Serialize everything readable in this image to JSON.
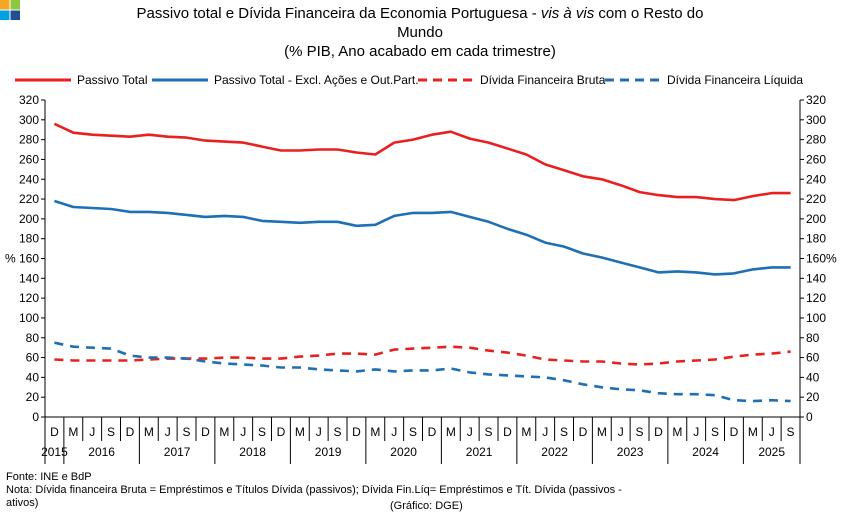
{
  "logo": {
    "colors": [
      "#f5a623",
      "#8dc63f",
      "#00a0e3",
      "#1d4f91"
    ]
  },
  "chart_data": {
    "type": "line",
    "title_line1_a": "Passivo total e Dívida Financeira da Economia Portuguesa - ",
    "title_line1_italic": "vis à vis",
    "title_line1_b": " com o Resto do",
    "title_line2": "Mundo",
    "title_line3": "(% PIB, Ano acabado em cada trimestre)",
    "ylabel_left": "%",
    "ylabel_right": "%",
    "ylim": [
      0,
      320
    ],
    "yticks": [
      0,
      20,
      40,
      60,
      80,
      100,
      120,
      140,
      160,
      180,
      200,
      220,
      240,
      260,
      280,
      300,
      320
    ],
    "x": [
      "D",
      "M",
      "J",
      "S",
      "D",
      "M",
      "J",
      "S",
      "D",
      "M",
      "J",
      "S",
      "D",
      "M",
      "J",
      "S",
      "D",
      "M",
      "J",
      "S",
      "D",
      "M",
      "J",
      "S",
      "D",
      "M",
      "J",
      "S",
      "D",
      "M",
      "J",
      "S",
      "D",
      "M",
      "J",
      "S",
      "D",
      "M",
      "J",
      "S"
    ],
    "years": [
      {
        "label": "2015",
        "start": 0,
        "end": 0
      },
      {
        "label": "2016",
        "start": 1,
        "end": 4
      },
      {
        "label": "2017",
        "start": 5,
        "end": 8
      },
      {
        "label": "2018",
        "start": 9,
        "end": 12
      },
      {
        "label": "2019",
        "start": 13,
        "end": 16
      },
      {
        "label": "2020",
        "start": 17,
        "end": 20
      },
      {
        "label": "2021",
        "start": 21,
        "end": 24
      },
      {
        "label": "2022",
        "start": 25,
        "end": 28
      },
      {
        "label": "2023",
        "start": 29,
        "end": 32
      },
      {
        "label": "2024",
        "start": 33,
        "end": 36
      },
      {
        "label": "2025",
        "start": 37,
        "end": 39
      }
    ],
    "legend_position": "top",
    "series": [
      {
        "name": "Passivo Total",
        "color": "#e8201f",
        "dash": "solid",
        "values": [
          296,
          287,
          285,
          284,
          283,
          285,
          283,
          282,
          279,
          278,
          277,
          273,
          269,
          269,
          270,
          270,
          267,
          265,
          277,
          280,
          285,
          288,
          281,
          277,
          271,
          265,
          255,
          249,
          243,
          240,
          234,
          227,
          224,
          222,
          222,
          220,
          219,
          223,
          226,
          226
        ]
      },
      {
        "name": "Passivo Total - Excl. Ações e Out.Part.",
        "color": "#1f6fb5",
        "dash": "solid",
        "values": [
          218,
          212,
          211,
          210,
          207,
          207,
          206,
          204,
          202,
          203,
          202,
          198,
          197,
          196,
          197,
          197,
          193,
          194,
          203,
          206,
          206,
          207,
          202,
          197,
          190,
          184,
          176,
          172,
          165,
          161,
          156,
          151,
          146,
          147,
          146,
          144,
          145,
          149,
          151,
          151
        ]
      },
      {
        "name": "Dívida Financeira Bruta",
        "color": "#e8201f",
        "dash": "dashed",
        "values": [
          58,
          57,
          57,
          57,
          57,
          58,
          59,
          59,
          59,
          60,
          60,
          59,
          59,
          61,
          62,
          64,
          64,
          63,
          68,
          69,
          70,
          71,
          70,
          67,
          65,
          62,
          58,
          57,
          56,
          56,
          54,
          53,
          54,
          56,
          57,
          58,
          61,
          63,
          64,
          66
        ]
      },
      {
        "name": "Dívida Financeira Líquida",
        "color": "#1f6fb5",
        "dash": "dashed",
        "values": [
          75,
          71,
          70,
          69,
          62,
          60,
          60,
          59,
          56,
          54,
          53,
          52,
          50,
          50,
          48,
          47,
          46,
          48,
          46,
          47,
          47,
          49,
          45,
          43,
          42,
          41,
          40,
          37,
          33,
          30,
          28,
          27,
          24,
          23,
          23,
          22,
          17,
          16,
          17,
          16
        ]
      }
    ]
  },
  "footer": {
    "line1": "Fonte: INE e BdP",
    "line2": "Nota: Dívida financeira Bruta = Empréstimos e Títulos Dívida (passivos); Dívida Fin.Líq= Empréstimos e Tít. Dívida (passivos -",
    "line3_a": "ativos)",
    "line3_b": "(Gráfico: DGE)"
  }
}
